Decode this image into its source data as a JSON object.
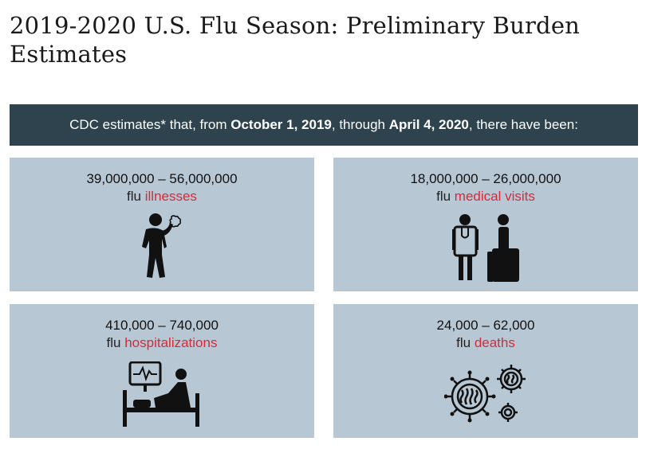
{
  "page": {
    "title": "2019-2020 U.S. Flu Season: Preliminary Burden Estimates"
  },
  "banner": {
    "pre": "CDC estimates* that, from ",
    "start_date": "October 1, 2019",
    "mid": ", through ",
    "end_date": "April 4, 2020",
    "post": ", there have been:"
  },
  "colors": {
    "banner_bg": "#2e434d",
    "card_bg": "#b8c7d4",
    "accent": "#d62b3a"
  },
  "estimates": [
    {
      "range": "39,000,000 – 56,000,000",
      "prefix": "flu ",
      "label": "illnesses",
      "icon": "sick-person-icon"
    },
    {
      "range": "18,000,000 – 26,000,000",
      "prefix": "flu ",
      "label": "medical visits",
      "icon": "doctor-patient-icon"
    },
    {
      "range": "410,000 – 740,000",
      "prefix": "flu ",
      "label": "hospitalizations",
      "icon": "hospital-bed-icon"
    },
    {
      "range": "24,000 – 62,000",
      "prefix": "flu ",
      "label": "deaths",
      "icon": "virus-icon"
    }
  ]
}
